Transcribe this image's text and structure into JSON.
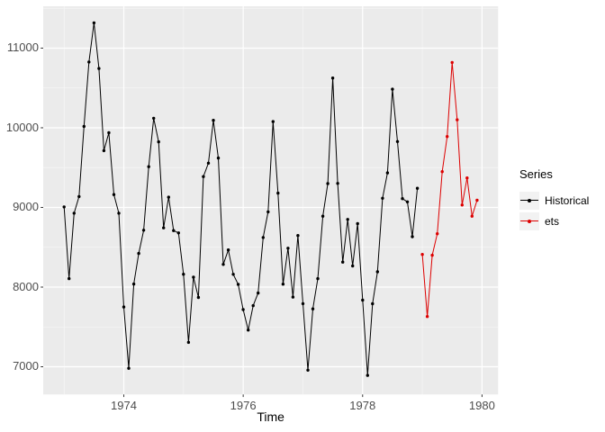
{
  "colors": {
    "page_bg": "#FFFFFF",
    "panel_bg": "#EBEBEB",
    "grid": "#FFFFFF",
    "axis_tick": "#333333",
    "tick_label": "#4D4D4D",
    "axis_title": "#000000",
    "legend_key_bg": "#F2F2F2",
    "historical_series": "#000000",
    "ets_series": "#DD0000"
  },
  "chart_data": {
    "type": "line",
    "title": "",
    "xlabel": "Time",
    "ylabel": "",
    "legend_title": "Series",
    "legend_position": "right",
    "grid": true,
    "xlim": [
      1972.65,
      1980.27
    ],
    "ylim": [
      6652,
      11525
    ],
    "x_ticks": {
      "values": [
        1974,
        1976,
        1978,
        1980
      ],
      "labels": [
        "1974",
        "1976",
        "1978",
        "1980"
      ],
      "minor_values": [
        1973,
        1975,
        1977,
        1979
      ]
    },
    "y_ticks": {
      "values": [
        7000,
        8000,
        9000,
        10000,
        11000
      ],
      "labels": [
        "7000",
        "8000",
        "9000",
        "10000",
        "11000"
      ],
      "minor_values": [
        7500,
        8500,
        9500,
        10500,
        11500
      ]
    },
    "series": [
      {
        "name": "Historical",
        "color": "#000000",
        "x_start": 1973.0,
        "x_step": 0.0833333,
        "x_unit": "monthly",
        "values": [
          9007,
          8106,
          8928,
          9137,
          10017,
          10826,
          11317,
          10744,
          9713,
          9938,
          9161,
          8927,
          7750,
          6981,
          8038,
          8422,
          8714,
          9512,
          10120,
          9823,
          8743,
          9129,
          8710,
          8680,
          8162,
          7306,
          8124,
          7870,
          9387,
          9556,
          10093,
          9620,
          8285,
          8466,
          8160,
          8034,
          7717,
          7461,
          7767,
          7925,
          8623,
          8945,
          10078,
          9179,
          8037,
          8488,
          7874,
          8647,
          7792,
          6957,
          7726,
          8106,
          8890,
          9299,
          10625,
          9302,
          8314,
          8850,
          8265,
          8796,
          7836,
          6892,
          7791,
          8192,
          9115,
          9434,
          10484,
          9827,
          9110,
          9070,
          8633,
          9240
        ]
      },
      {
        "name": "ets",
        "color": "#DD0000",
        "x_start": 1979.0,
        "x_step": 0.0833333,
        "x_unit": "monthly",
        "values": [
          8410,
          7630,
          8400,
          8670,
          9450,
          9890,
          10820,
          10100,
          9030,
          9370,
          8890,
          9090
        ]
      }
    ]
  }
}
